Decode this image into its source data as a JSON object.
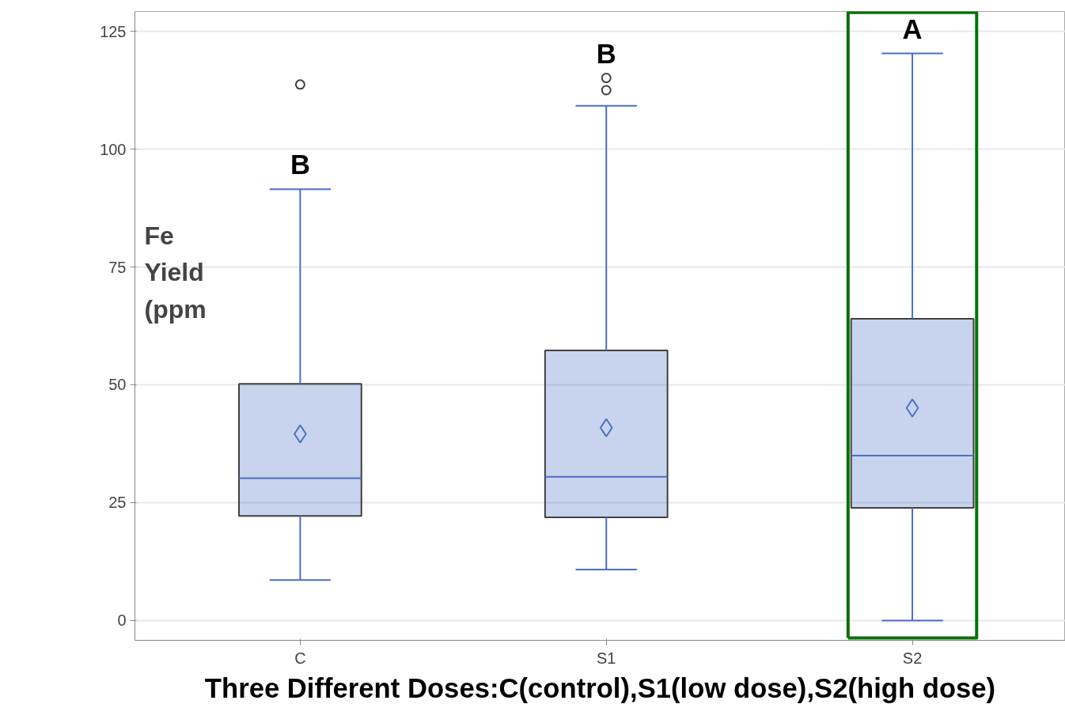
{
  "chart_data": {
    "type": "box",
    "xlabel": "Three Different Doses:C(control),S1(low dose),S2(high dose)",
    "ylabel": "Fe Yield (ppm",
    "categories": [
      "C",
      "S1",
      "S2"
    ],
    "color": "#4a6fc4",
    "boxes": [
      {
        "low": 8.6,
        "q1": 22.2,
        "median": 30.2,
        "q3": 50.2,
        "high": 91.5,
        "mean": 39.6,
        "outliers": [
          113.7
        ]
      },
      {
        "low": 10.8,
        "q1": 21.9,
        "median": 30.5,
        "q3": 57.3,
        "high": 109.2,
        "mean": 40.9,
        "outliers": [
          112.5,
          115.1
        ]
      },
      {
        "low": 0,
        "q1": 23.9,
        "median": 35.0,
        "q3": 64.0,
        "high": 120.3,
        "mean": 45.1
      }
    ],
    "ylim": [
      -4.2,
      129.2
    ],
    "yticks": [
      0,
      25,
      50,
      75,
      100,
      125
    ],
    "grid": "y",
    "annotations": [
      "B",
      "B",
      "A"
    ]
  }
}
